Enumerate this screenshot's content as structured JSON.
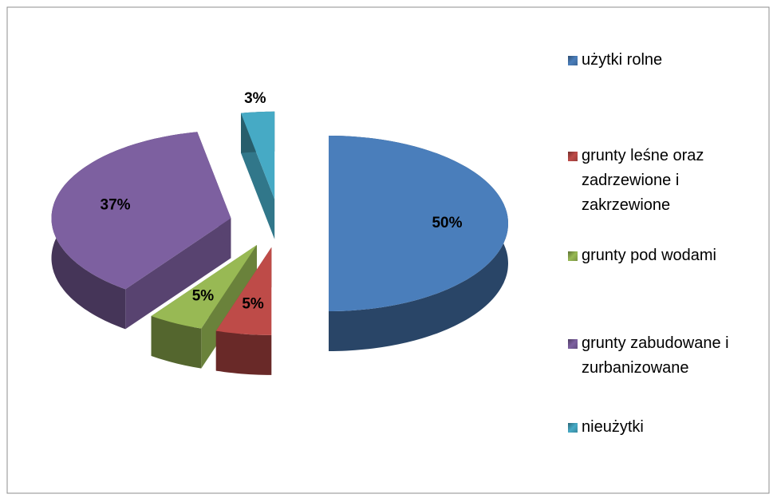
{
  "chart_data": {
    "type": "pie",
    "categories": [
      "użytki rolne",
      "grunty leśne oraz zadrzewione i zakrzewione",
      "grunty pod wodami",
      "grunty zabudowane i zurbanizowane",
      "nieużytki"
    ],
    "values": [
      50,
      5,
      5,
      37,
      3
    ],
    "value_labels": [
      "50%",
      "5%",
      "5%",
      "37%",
      "3%"
    ],
    "colors": [
      "#4a7ebb",
      "#be4b48",
      "#98b954",
      "#7d60a0",
      "#46aac5"
    ],
    "legend": "right"
  }
}
